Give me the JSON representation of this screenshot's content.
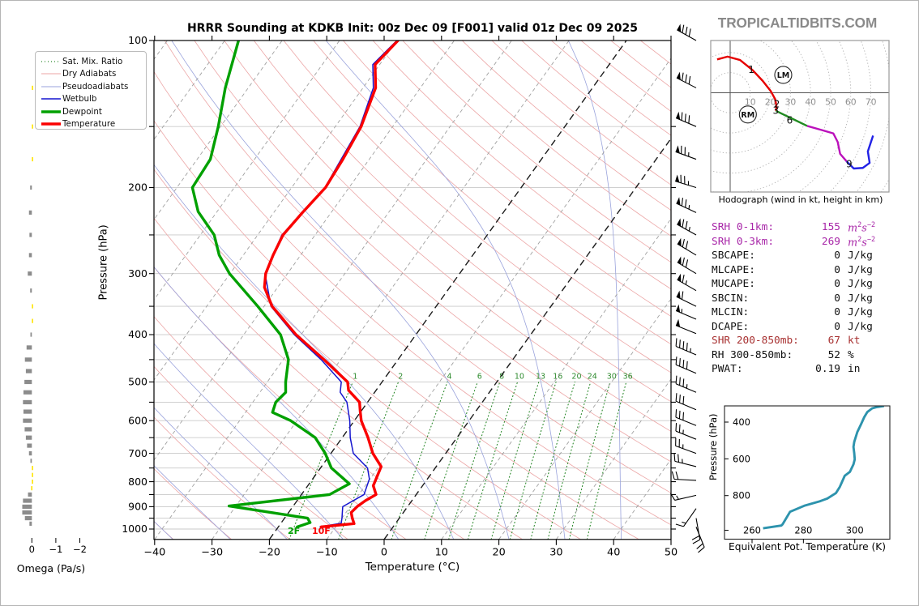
{
  "page": {
    "brand": "TROPICALTIDBITS.COM"
  },
  "skewt": {
    "title": "HRRR Sounding at KDKB Init: 00z Dec 09 [F001] valid 01z Dec 09 2025",
    "xlabel": "Temperature (°C)",
    "ylabel": "Pressure (hPa)",
    "x_ticks": [
      -40,
      -30,
      -20,
      -10,
      0,
      10,
      20,
      30,
      40,
      50
    ],
    "p_tick_labels": [
      100,
      200,
      300,
      400,
      500,
      600,
      700,
      800,
      900,
      1000
    ],
    "surface_labels": {
      "dewpoint_f": "2F",
      "temperature_f": "10F"
    },
    "legend": [
      {
        "key": "satmix",
        "label": "Sat. Mix. Ratio"
      },
      {
        "key": "dryad",
        "label": "Dry Adiabats"
      },
      {
        "key": "pseudo",
        "label": "Pseudoadiabats"
      },
      {
        "key": "wetbulb",
        "label": "Wetbulb"
      },
      {
        "key": "dewpoint",
        "label": "Dewpoint"
      },
      {
        "key": "temperature",
        "label": "Temperature"
      }
    ]
  },
  "indices": {
    "rows": [
      {
        "label": "SRH 0-1km:",
        "value": "155",
        "unit": "m²s⁻²",
        "color": "purple"
      },
      {
        "label": "SRH 0-3km:",
        "value": "269",
        "unit": "m²s⁻²",
        "color": "purple"
      },
      {
        "label": "SBCAPE:",
        "value": "0",
        "unit": "J/kg",
        "color": "black"
      },
      {
        "label": "MLCAPE:",
        "value": "0",
        "unit": "J/kg",
        "color": "black"
      },
      {
        "label": "MUCAPE:",
        "value": "0",
        "unit": "J/kg",
        "color": "black"
      },
      {
        "label": "SBCIN:",
        "value": "0",
        "unit": "J/kg",
        "color": "black"
      },
      {
        "label": "MLCIN:",
        "value": "0",
        "unit": "J/kg",
        "color": "black"
      },
      {
        "label": "DCAPE:",
        "value": "0",
        "unit": "J/kg",
        "color": "black"
      },
      {
        "label": "SHR 200-850mb:",
        "value": "67",
        "unit": "kt",
        "color": "darkred"
      },
      {
        "label": "RH 300-850mb:",
        "value": "52",
        "unit": "%",
        "color": "black"
      },
      {
        "label": "PWAT:",
        "value": "0.19",
        "unit": "in",
        "color": "black"
      }
    ]
  },
  "hodograph": {
    "caption": "Hodograph (wind in kt, height in km)",
    "ring_step_kt": 10,
    "ring_labels": [
      10,
      20,
      30,
      40,
      50,
      60,
      70
    ],
    "segments": [
      {
        "layer": "0-3km",
        "color": "red",
        "points": [
          [
            -6.5,
            16.6
          ],
          [
            -1.3,
            18.0
          ],
          [
            4.9,
            16.3
          ],
          [
            11.1,
            11.3
          ],
          [
            16.2,
            5.9
          ],
          [
            20.2,
            0.8
          ],
          [
            22.4,
            -3.2
          ],
          [
            23.0,
            -6.5
          ],
          [
            22.8,
            -9.0
          ]
        ]
      },
      {
        "layer": "3-6km",
        "color": "green",
        "points": [
          [
            22.8,
            -9.0
          ],
          [
            26.5,
            -10.8
          ],
          [
            31.5,
            -13.2
          ],
          [
            38.3,
            -16.5
          ]
        ]
      },
      {
        "layer": "6-9km",
        "color": "purple",
        "points": [
          [
            38.3,
            -16.5
          ],
          [
            45.0,
            -18.4
          ],
          [
            51.3,
            -20.2
          ],
          [
            53.5,
            -24.5
          ],
          [
            54.7,
            -30.4
          ],
          [
            57.9,
            -34.1
          ]
        ]
      },
      {
        "layer": "9-12km",
        "color": "blue",
        "points": [
          [
            57.9,
            -34.1
          ],
          [
            61.5,
            -37.7
          ],
          [
            66.0,
            -37.4
          ],
          [
            69.4,
            -34.9
          ],
          [
            68.5,
            -29.2
          ],
          [
            71.1,
            -21.3
          ]
        ]
      }
    ],
    "km_labels": [
      {
        "text": "1",
        "u": 10.5,
        "v": 11.5
      },
      {
        "text": "2",
        "u": 23.2,
        "v": -5.6
      },
      {
        "text": "3",
        "u": 22.7,
        "v": -8.8
      },
      {
        "text": "6",
        "u": 29.6,
        "v": -13.7
      },
      {
        "text": "9",
        "u": 59.2,
        "v": -35.4
      }
    ],
    "storm_motions": [
      {
        "text": "LM",
        "u": 26.4,
        "v": 8.9
      },
      {
        "text": "RM",
        "u": 8.8,
        "v": -10.8
      }
    ]
  },
  "theta_e": {
    "xlabel": "Equivalent Pot. Temperature (K)",
    "ylabel": "Pressure (hPa)",
    "x_ticks": [
      260,
      280,
      300
    ],
    "y_ticks": [
      400,
      600,
      800
    ],
    "points": [
      [
        264.3,
        978
      ],
      [
        271.4,
        963
      ],
      [
        271.9,
        956
      ],
      [
        274.8,
        888
      ],
      [
        280.6,
        854
      ],
      [
        286.4,
        831
      ],
      [
        289.3,
        816
      ],
      [
        292.7,
        786
      ],
      [
        294.2,
        752
      ],
      [
        296.1,
        692
      ],
      [
        298.1,
        671
      ],
      [
        299.5,
        630
      ],
      [
        300.0,
        603
      ],
      [
        299.8,
        569
      ],
      [
        299.5,
        535
      ],
      [
        299.8,
        508
      ],
      [
        301.0,
        454
      ],
      [
        302.4,
        413
      ],
      [
        303.7,
        373
      ],
      [
        304.9,
        345
      ],
      [
        306.8,
        325
      ],
      [
        308.7,
        318
      ],
      [
        311.4,
        312
      ]
    ]
  },
  "omega": {
    "xlabel": "Omega (Pa/s)",
    "x_ticks": [
      0,
      -1,
      -2
    ],
    "values": [
      [
        125,
        -0.03
      ],
      [
        150,
        -0.04
      ],
      [
        175,
        -0.04
      ],
      [
        200,
        0.07
      ],
      [
        225,
        0.12
      ],
      [
        250,
        0.1
      ],
      [
        275,
        0.12
      ],
      [
        300,
        0.17
      ],
      [
        325,
        0.07
      ],
      [
        350,
        -0.03
      ],
      [
        375,
        -0.03
      ],
      [
        400,
        0.06
      ],
      [
        425,
        0.22
      ],
      [
        450,
        0.29
      ],
      [
        475,
        0.25
      ],
      [
        500,
        0.31
      ],
      [
        525,
        0.35
      ],
      [
        550,
        0.37
      ],
      [
        575,
        0.35
      ],
      [
        600,
        0.37
      ],
      [
        625,
        0.3
      ],
      [
        650,
        0.25
      ],
      [
        675,
        0.2
      ],
      [
        700,
        0.12
      ],
      [
        725,
        0.06
      ],
      [
        750,
        -0.05
      ],
      [
        775,
        -0.05
      ],
      [
        800,
        -0.04
      ],
      [
        825,
        0.03
      ],
      [
        850,
        0.16
      ],
      [
        875,
        0.37
      ],
      [
        900,
        0.4
      ],
      [
        925,
        0.4
      ],
      [
        950,
        0.29
      ],
      [
        975,
        0.1
      ]
    ]
  },
  "chart_data": {
    "type": "skewt-log-p",
    "title": "HRRR Sounding at KDKB Init: 00z Dec 09 [F001] valid 01z Dec 09 2025",
    "xlabel": "Temperature (°C)",
    "ylabel": "Pressure (hPa)",
    "xlim": [
      -40,
      50
    ],
    "plim": [
      100,
      1050
    ],
    "isotherm_step_c": 10,
    "highlight_isotherms_c": [
      0,
      -20
    ],
    "dry_adiabat_step_k": 10,
    "pseudoadiabat_step_k": 10,
    "mixing_ratio_lines_gkg": [
      1,
      2,
      4,
      6,
      8,
      10,
      13,
      16,
      20,
      24,
      30,
      36
    ],
    "series": [
      {
        "name": "Temperature",
        "units": [
          "hPa",
          "degC"
        ],
        "points": [
          [
            100,
            -59.8
          ],
          [
            112,
            -60.8
          ],
          [
            125,
            -57.8
          ],
          [
            150,
            -55.5
          ],
          [
            175,
            -54.6
          ],
          [
            200,
            -54.1
          ],
          [
            225,
            -55.0
          ],
          [
            250,
            -55.6
          ],
          [
            275,
            -54.8
          ],
          [
            300,
            -53.8
          ],
          [
            320,
            -52.3
          ],
          [
            350,
            -48.6
          ],
          [
            400,
            -40.9
          ],
          [
            450,
            -32.9
          ],
          [
            500,
            -26.0
          ],
          [
            520,
            -24.8
          ],
          [
            550,
            -21.4
          ],
          [
            575,
            -20.1
          ],
          [
            600,
            -18.8
          ],
          [
            650,
            -15.5
          ],
          [
            700,
            -12.7
          ],
          [
            745,
            -9.6
          ],
          [
            800,
            -8.8
          ],
          [
            815,
            -8.6
          ],
          [
            850,
            -7.0
          ],
          [
            875,
            -8.1
          ],
          [
            900,
            -8.8
          ],
          [
            925,
            -9.1
          ],
          [
            950,
            -8.2
          ],
          [
            975,
            -7.2
          ],
          [
            990,
            -12.5
          ]
        ]
      },
      {
        "name": "Dewpoint",
        "units": [
          "hPa",
          "degC"
        ],
        "points": [
          [
            100,
            -87.6
          ],
          [
            125,
            -84.0
          ],
          [
            150,
            -80.4
          ],
          [
            175,
            -77.7
          ],
          [
            200,
            -77.3
          ],
          [
            224,
            -73.3
          ],
          [
            250,
            -67.6
          ],
          [
            275,
            -64.2
          ],
          [
            300,
            -60.1
          ],
          [
            350,
            -51.1
          ],
          [
            400,
            -43.6
          ],
          [
            450,
            -39.1
          ],
          [
            500,
            -36.8
          ],
          [
            525,
            -35.5
          ],
          [
            550,
            -36.0
          ],
          [
            577,
            -35.3
          ],
          [
            600,
            -31.1
          ],
          [
            650,
            -24.7
          ],
          [
            700,
            -21.0
          ],
          [
            750,
            -18.1
          ],
          [
            808,
            -13.0
          ],
          [
            850,
            -15.1
          ],
          [
            897,
            -31.2
          ],
          [
            950,
            -16.0
          ],
          [
            970,
            -15.0
          ],
          [
            990,
            -16.7
          ]
        ]
      },
      {
        "name": "Wetbulb",
        "units": [
          "hPa",
          "degC"
        ],
        "points": [
          [
            100,
            -60.0
          ],
          [
            112,
            -61.2
          ],
          [
            125,
            -58.2
          ],
          [
            150,
            -55.7
          ],
          [
            200,
            -54.2
          ],
          [
            250,
            -55.8
          ],
          [
            300,
            -53.9
          ],
          [
            350,
            -48.8
          ],
          [
            400,
            -41.2
          ],
          [
            450,
            -33.4
          ],
          [
            500,
            -27.1
          ],
          [
            525,
            -26.0
          ],
          [
            550,
            -23.6
          ],
          [
            600,
            -20.8
          ],
          [
            650,
            -18.6
          ],
          [
            700,
            -16.1
          ],
          [
            750,
            -11.8
          ],
          [
            790,
            -10.1
          ],
          [
            850,
            -9.1
          ],
          [
            900,
            -11.3
          ],
          [
            950,
            -10.0
          ],
          [
            973,
            -9.5
          ],
          [
            990,
            -12.8
          ]
        ]
      }
    ],
    "wind_barbs": [
      {
        "p": 100,
        "dir": 299,
        "kt": 80
      },
      {
        "p": 125,
        "dir": 297,
        "kt": 80
      },
      {
        "p": 150,
        "dir": 293,
        "kt": 80
      },
      {
        "p": 175,
        "dir": 290,
        "kt": 75
      },
      {
        "p": 200,
        "dir": 287,
        "kt": 75
      },
      {
        "p": 225,
        "dir": 295,
        "kt": 75
      },
      {
        "p": 250,
        "dir": 299,
        "kt": 75
      },
      {
        "p": 275,
        "dir": 301,
        "kt": 70
      },
      {
        "p": 300,
        "dir": 301,
        "kt": 70
      },
      {
        "p": 325,
        "dir": 300,
        "kt": 65
      },
      {
        "p": 350,
        "dir": 296,
        "kt": 60
      },
      {
        "p": 372,
        "dir": 293,
        "kt": 55
      },
      {
        "p": 398,
        "dir": 292,
        "kt": 50
      },
      {
        "p": 440,
        "dir": 293,
        "kt": 45
      },
      {
        "p": 480,
        "dir": 293,
        "kt": 40
      },
      {
        "p": 525,
        "dir": 293,
        "kt": 35
      },
      {
        "p": 570,
        "dir": 293,
        "kt": 30
      },
      {
        "p": 614,
        "dir": 292,
        "kt": 30
      },
      {
        "p": 655,
        "dir": 292,
        "kt": 25
      },
      {
        "p": 700,
        "dir": 290,
        "kt": 25
      },
      {
        "p": 745,
        "dir": 284,
        "kt": 25
      },
      {
        "p": 795,
        "dir": 273,
        "kt": 20
      },
      {
        "p": 853,
        "dir": 257,
        "kt": 15
      },
      {
        "p": 908,
        "dir": 215,
        "kt": 15
      },
      {
        "p": 950,
        "dir": 170,
        "kt": 20
      },
      {
        "p": 990,
        "dir": 158,
        "kt": 20
      }
    ]
  }
}
